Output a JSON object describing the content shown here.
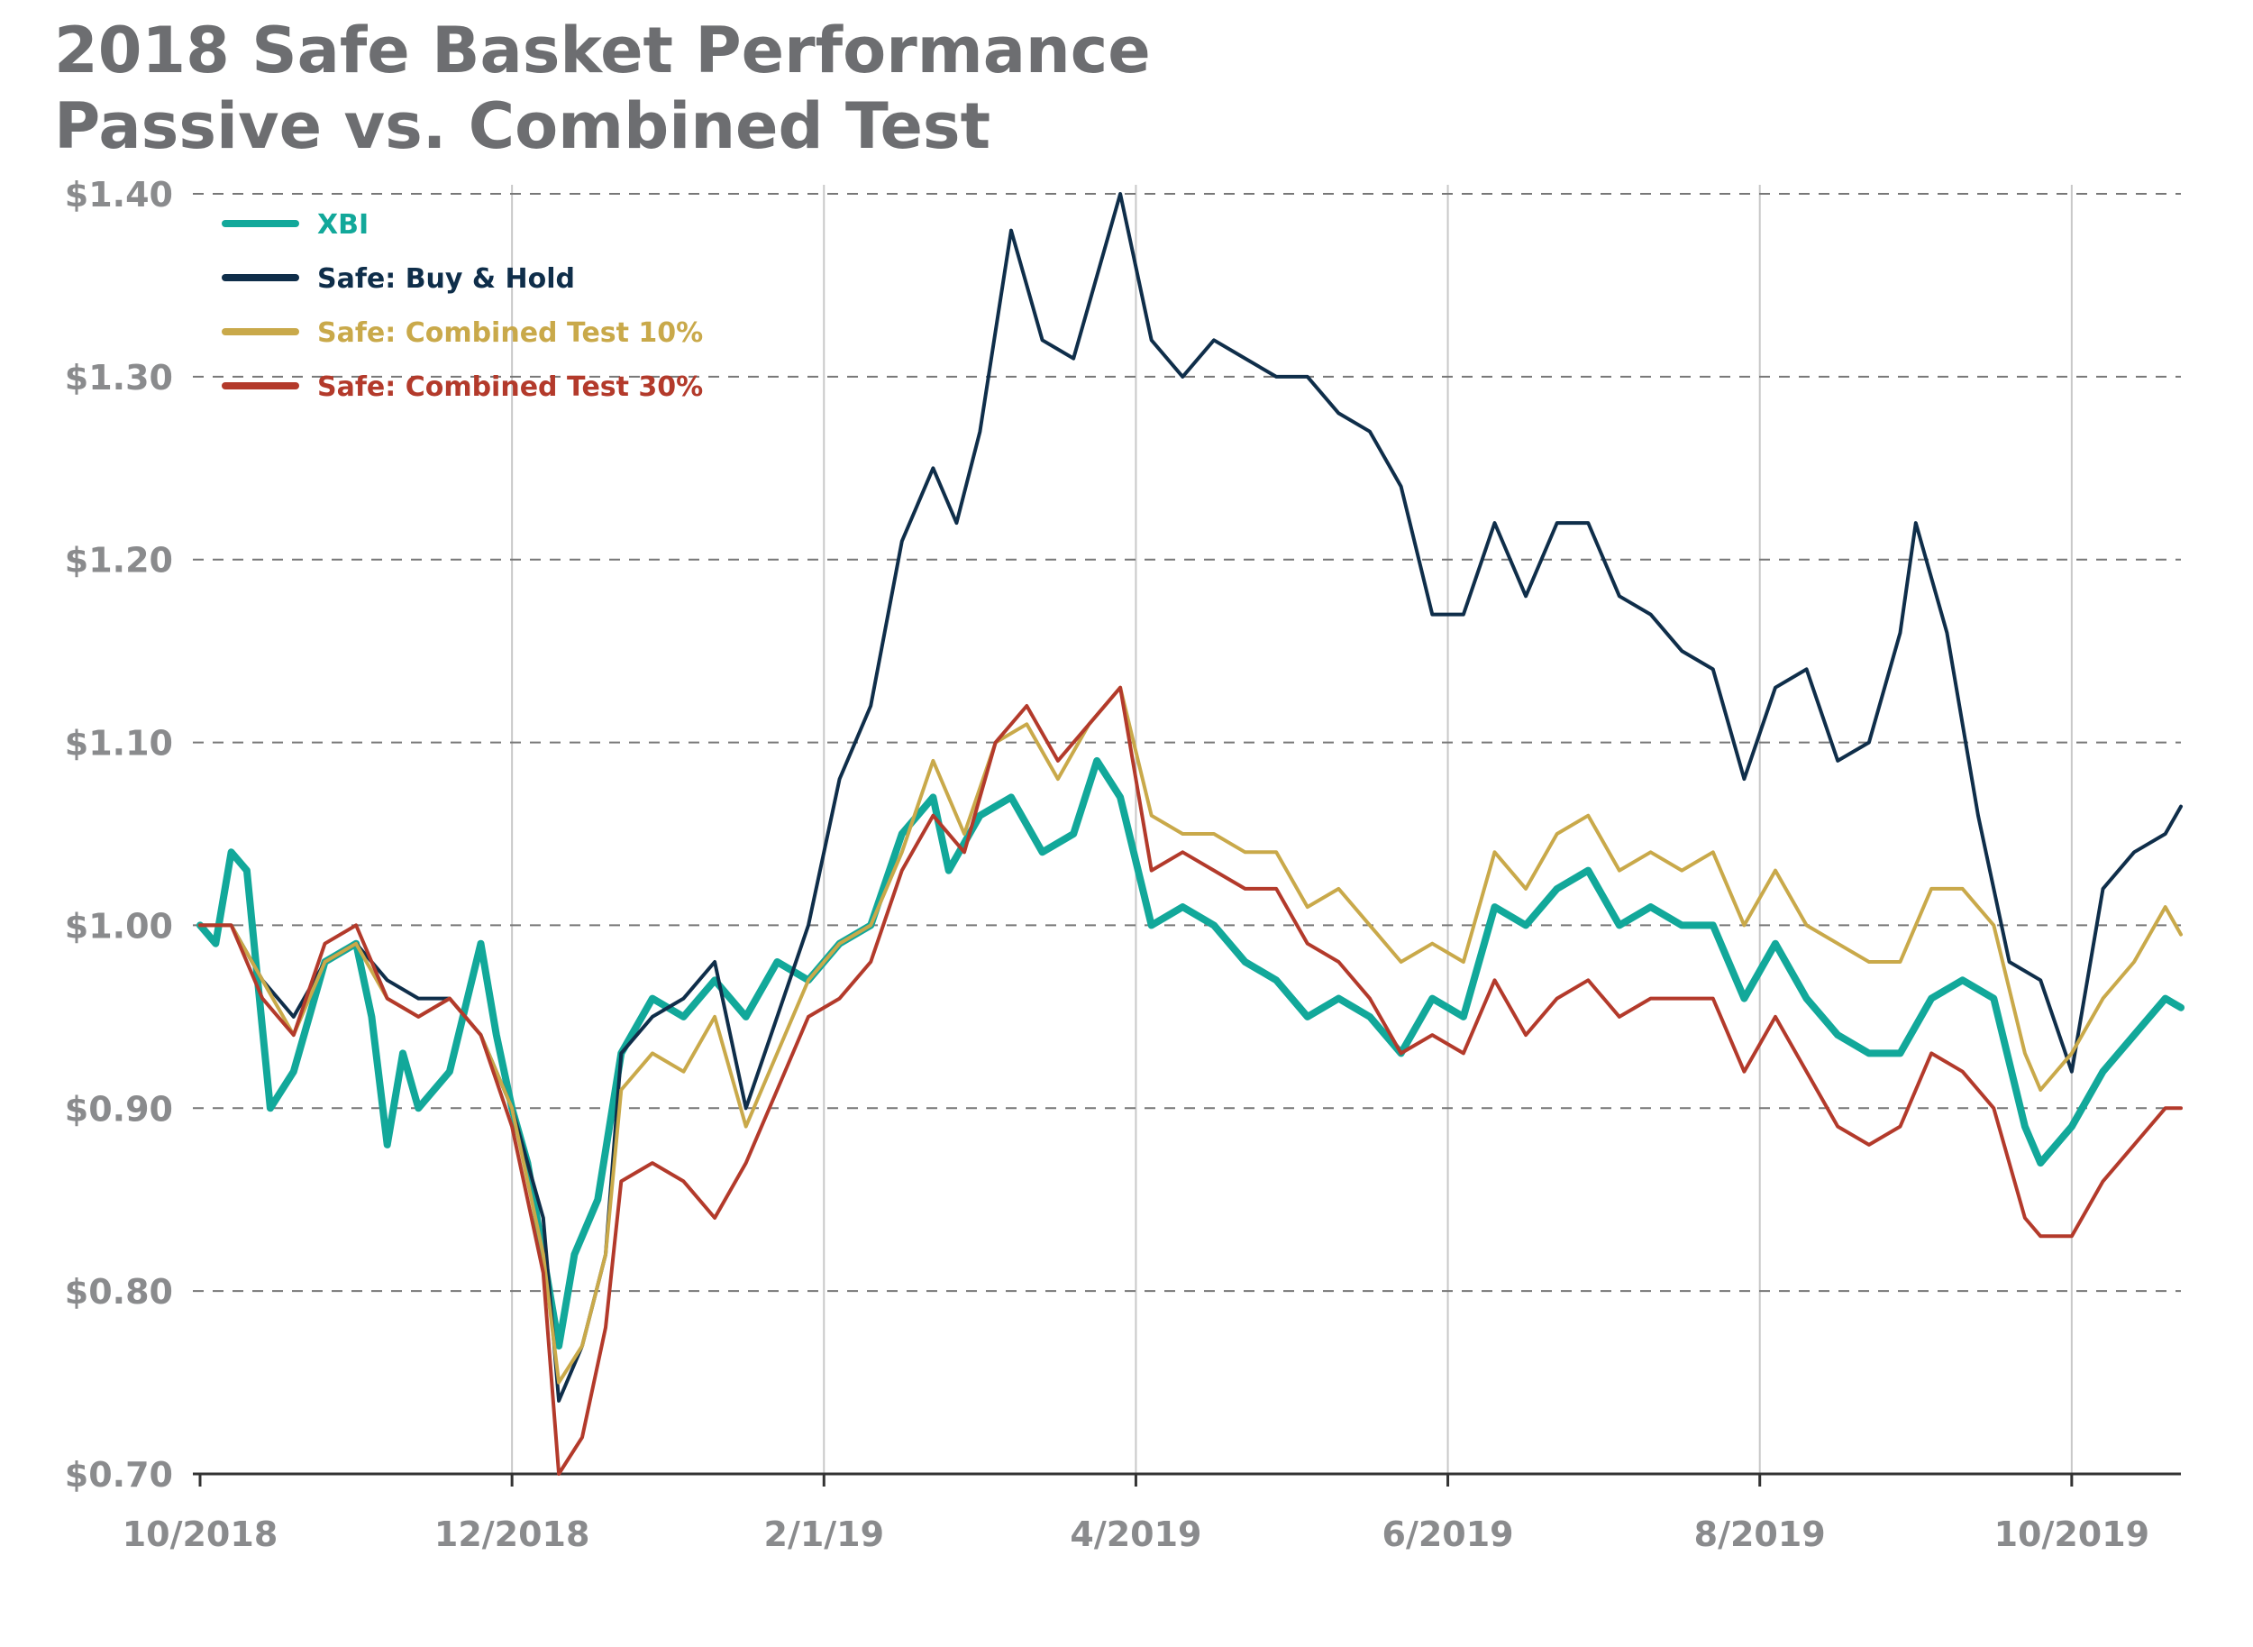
{
  "chart_data": {
    "type": "line",
    "title": "2018 Safe Basket Performance",
    "subtitle": "Passive vs. Combined Test",
    "xlabel": "",
    "ylabel": "",
    "x_range": [
      "10/2018",
      "10/2019+"
    ],
    "ylim": [
      0.7,
      1.4
    ],
    "y_ticks": [
      {
        "value": 1.4,
        "label": "$1.40"
      },
      {
        "value": 1.3,
        "label": "$1.30"
      },
      {
        "value": 1.2,
        "label": "$1.20"
      },
      {
        "value": 1.1,
        "label": "$1.10"
      },
      {
        "value": 1.0,
        "label": "$1.00"
      },
      {
        "value": 0.9,
        "label": "$0.90"
      },
      {
        "value": 0.8,
        "label": "$0.80"
      },
      {
        "value": 0.7,
        "label": "$0.70"
      }
    ],
    "x_ticks": [
      {
        "pos": 0,
        "label": "10/2018"
      },
      {
        "pos": 2,
        "label": "12/2018"
      },
      {
        "pos": 4,
        "label": "2/1/19"
      },
      {
        "pos": 6,
        "label": "4/2019"
      },
      {
        "pos": 8,
        "label": "6/2019"
      },
      {
        "pos": 10,
        "label": "8/2019"
      },
      {
        "pos": 12,
        "label": "10/2019"
      }
    ],
    "x_max": 12.7,
    "grid": {
      "horizontal": "dashed",
      "vertical": "solid"
    },
    "legend_position": "top-left",
    "series": [
      {
        "name": "XBI",
        "color": "#12a89a",
        "width": 8,
        "points": [
          [
            0,
            1.0
          ],
          [
            0.1,
            0.99
          ],
          [
            0.2,
            1.04
          ],
          [
            0.3,
            1.03
          ],
          [
            0.45,
            0.9
          ],
          [
            0.6,
            0.92
          ],
          [
            0.8,
            0.98
          ],
          [
            1.0,
            0.99
          ],
          [
            1.1,
            0.95
          ],
          [
            1.2,
            0.88
          ],
          [
            1.3,
            0.93
          ],
          [
            1.4,
            0.9
          ],
          [
            1.6,
            0.92
          ],
          [
            1.8,
            0.99
          ],
          [
            1.9,
            0.94
          ],
          [
            2.0,
            0.9
          ],
          [
            2.1,
            0.87
          ],
          [
            2.2,
            0.82
          ],
          [
            2.3,
            0.77
          ],
          [
            2.4,
            0.82
          ],
          [
            2.55,
            0.85
          ],
          [
            2.7,
            0.93
          ],
          [
            2.9,
            0.96
          ],
          [
            3.1,
            0.95
          ],
          [
            3.3,
            0.97
          ],
          [
            3.5,
            0.95
          ],
          [
            3.7,
            0.98
          ],
          [
            3.9,
            0.97
          ],
          [
            4.1,
            0.99
          ],
          [
            4.3,
            1.0
          ],
          [
            4.5,
            1.05
          ],
          [
            4.7,
            1.07
          ],
          [
            4.8,
            1.03
          ],
          [
            5.0,
            1.06
          ],
          [
            5.2,
            1.07
          ],
          [
            5.4,
            1.04
          ],
          [
            5.6,
            1.05
          ],
          [
            5.75,
            1.09
          ],
          [
            5.9,
            1.07
          ],
          [
            6.1,
            1.0
          ],
          [
            6.3,
            1.01
          ],
          [
            6.5,
            1.0
          ],
          [
            6.7,
            0.98
          ],
          [
            6.9,
            0.97
          ],
          [
            7.1,
            0.95
          ],
          [
            7.3,
            0.96
          ],
          [
            7.5,
            0.95
          ],
          [
            7.7,
            0.93
          ],
          [
            7.9,
            0.96
          ],
          [
            8.1,
            0.95
          ],
          [
            8.3,
            1.01
          ],
          [
            8.5,
            1.0
          ],
          [
            8.7,
            1.02
          ],
          [
            8.9,
            1.03
          ],
          [
            9.1,
            1.0
          ],
          [
            9.3,
            1.01
          ],
          [
            9.5,
            1.0
          ],
          [
            9.7,
            1.0
          ],
          [
            9.9,
            0.96
          ],
          [
            10.1,
            0.99
          ],
          [
            10.3,
            0.96
          ],
          [
            10.5,
            0.94
          ],
          [
            10.7,
            0.93
          ],
          [
            10.9,
            0.93
          ],
          [
            11.1,
            0.96
          ],
          [
            11.3,
            0.97
          ],
          [
            11.5,
            0.96
          ],
          [
            11.7,
            0.89
          ],
          [
            11.8,
            0.87
          ],
          [
            12.0,
            0.89
          ],
          [
            12.2,
            0.92
          ],
          [
            12.4,
            0.94
          ],
          [
            12.6,
            0.96
          ],
          [
            12.7,
            0.955
          ]
        ]
      },
      {
        "name": "Safe: Buy & Hold",
        "color": "#0f2e4a",
        "width": 4,
        "points": [
          [
            0,
            1.0
          ],
          [
            0.2,
            1.0
          ],
          [
            0.4,
            0.97
          ],
          [
            0.6,
            0.95
          ],
          [
            0.8,
            0.98
          ],
          [
            1.0,
            0.99
          ],
          [
            1.2,
            0.97
          ],
          [
            1.4,
            0.96
          ],
          [
            1.6,
            0.96
          ],
          [
            1.8,
            0.94
          ],
          [
            2.0,
            0.9
          ],
          [
            2.2,
            0.84
          ],
          [
            2.3,
            0.74
          ],
          [
            2.45,
            0.77
          ],
          [
            2.6,
            0.82
          ],
          [
            2.7,
            0.93
          ],
          [
            2.9,
            0.95
          ],
          [
            3.1,
            0.96
          ],
          [
            3.3,
            0.98
          ],
          [
            3.5,
            0.9
          ],
          [
            3.7,
            0.95
          ],
          [
            3.9,
            1.0
          ],
          [
            4.1,
            1.08
          ],
          [
            4.3,
            1.12
          ],
          [
            4.5,
            1.21
          ],
          [
            4.7,
            1.25
          ],
          [
            4.85,
            1.22
          ],
          [
            5.0,
            1.27
          ],
          [
            5.2,
            1.38
          ],
          [
            5.4,
            1.32
          ],
          [
            5.6,
            1.31
          ],
          [
            5.8,
            1.37
          ],
          [
            5.9,
            1.4
          ],
          [
            6.1,
            1.32
          ],
          [
            6.3,
            1.3
          ],
          [
            6.5,
            1.32
          ],
          [
            6.7,
            1.31
          ],
          [
            6.9,
            1.3
          ],
          [
            7.1,
            1.3
          ],
          [
            7.3,
            1.28
          ],
          [
            7.5,
            1.27
          ],
          [
            7.7,
            1.24
          ],
          [
            7.9,
            1.17
          ],
          [
            8.1,
            1.17
          ],
          [
            8.3,
            1.22
          ],
          [
            8.5,
            1.18
          ],
          [
            8.7,
            1.22
          ],
          [
            8.9,
            1.22
          ],
          [
            9.1,
            1.18
          ],
          [
            9.3,
            1.17
          ],
          [
            9.5,
            1.15
          ],
          [
            9.7,
            1.14
          ],
          [
            9.9,
            1.08
          ],
          [
            10.1,
            1.13
          ],
          [
            10.3,
            1.14
          ],
          [
            10.5,
            1.09
          ],
          [
            10.7,
            1.1
          ],
          [
            10.9,
            1.16
          ],
          [
            11.0,
            1.22
          ],
          [
            11.2,
            1.16
          ],
          [
            11.4,
            1.06
          ],
          [
            11.6,
            0.98
          ],
          [
            11.8,
            0.97
          ],
          [
            12.0,
            0.92
          ],
          [
            12.2,
            1.02
          ],
          [
            12.4,
            1.04
          ],
          [
            12.6,
            1.05
          ],
          [
            12.7,
            1.065
          ]
        ]
      },
      {
        "name": "Safe: Combined Test 10%",
        "color": "#c9a94a",
        "width": 4,
        "points": [
          [
            0,
            1.0
          ],
          [
            0.2,
            1.0
          ],
          [
            0.4,
            0.97
          ],
          [
            0.6,
            0.94
          ],
          [
            0.8,
            0.98
          ],
          [
            1.0,
            0.99
          ],
          [
            1.2,
            0.96
          ],
          [
            1.4,
            0.95
          ],
          [
            1.6,
            0.96
          ],
          [
            1.8,
            0.94
          ],
          [
            2.0,
            0.9
          ],
          [
            2.2,
            0.82
          ],
          [
            2.3,
            0.75
          ],
          [
            2.45,
            0.77
          ],
          [
            2.6,
            0.82
          ],
          [
            2.7,
            0.91
          ],
          [
            2.9,
            0.93
          ],
          [
            3.1,
            0.92
          ],
          [
            3.3,
            0.95
          ],
          [
            3.5,
            0.89
          ],
          [
            3.7,
            0.93
          ],
          [
            3.9,
            0.97
          ],
          [
            4.1,
            0.99
          ],
          [
            4.3,
            1.0
          ],
          [
            4.5,
            1.04
          ],
          [
            4.7,
            1.09
          ],
          [
            4.9,
            1.05
          ],
          [
            5.1,
            1.1
          ],
          [
            5.3,
            1.11
          ],
          [
            5.5,
            1.08
          ],
          [
            5.7,
            1.11
          ],
          [
            5.9,
            1.13
          ],
          [
            6.1,
            1.06
          ],
          [
            6.3,
            1.05
          ],
          [
            6.5,
            1.05
          ],
          [
            6.7,
            1.04
          ],
          [
            6.9,
            1.04
          ],
          [
            7.1,
            1.01
          ],
          [
            7.3,
            1.02
          ],
          [
            7.5,
            1.0
          ],
          [
            7.7,
            0.98
          ],
          [
            7.9,
            0.99
          ],
          [
            8.1,
            0.98
          ],
          [
            8.3,
            1.04
          ],
          [
            8.5,
            1.02
          ],
          [
            8.7,
            1.05
          ],
          [
            8.9,
            1.06
          ],
          [
            9.1,
            1.03
          ],
          [
            9.3,
            1.04
          ],
          [
            9.5,
            1.03
          ],
          [
            9.7,
            1.04
          ],
          [
            9.9,
            1.0
          ],
          [
            10.1,
            1.03
          ],
          [
            10.3,
            1.0
          ],
          [
            10.5,
            0.99
          ],
          [
            10.7,
            0.98
          ],
          [
            10.9,
            0.98
          ],
          [
            11.1,
            1.02
          ],
          [
            11.3,
            1.02
          ],
          [
            11.5,
            1.0
          ],
          [
            11.7,
            0.93
          ],
          [
            11.8,
            0.91
          ],
          [
            12.0,
            0.93
          ],
          [
            12.2,
            0.96
          ],
          [
            12.4,
            0.98
          ],
          [
            12.6,
            1.01
          ],
          [
            12.7,
            0.995
          ]
        ]
      },
      {
        "name": "Safe: Combined Test 30%",
        "color": "#b33a2b",
        "width": 4,
        "points": [
          [
            0,
            1.0
          ],
          [
            0.2,
            1.0
          ],
          [
            0.4,
            0.96
          ],
          [
            0.6,
            0.94
          ],
          [
            0.8,
            0.99
          ],
          [
            1.0,
            1.0
          ],
          [
            1.2,
            0.96
          ],
          [
            1.4,
            0.95
          ],
          [
            1.6,
            0.96
          ],
          [
            1.8,
            0.94
          ],
          [
            2.0,
            0.89
          ],
          [
            2.2,
            0.81
          ],
          [
            2.3,
            0.7
          ],
          [
            2.45,
            0.72
          ],
          [
            2.6,
            0.78
          ],
          [
            2.7,
            0.86
          ],
          [
            2.9,
            0.87
          ],
          [
            3.1,
            0.86
          ],
          [
            3.3,
            0.84
          ],
          [
            3.5,
            0.87
          ],
          [
            3.7,
            0.91
          ],
          [
            3.9,
            0.95
          ],
          [
            4.1,
            0.96
          ],
          [
            4.3,
            0.98
          ],
          [
            4.5,
            1.03
          ],
          [
            4.7,
            1.06
          ],
          [
            4.9,
            1.04
          ],
          [
            5.1,
            1.1
          ],
          [
            5.3,
            1.12
          ],
          [
            5.5,
            1.09
          ],
          [
            5.7,
            1.11
          ],
          [
            5.9,
            1.13
          ],
          [
            6.1,
            1.03
          ],
          [
            6.3,
            1.04
          ],
          [
            6.5,
            1.03
          ],
          [
            6.7,
            1.02
          ],
          [
            6.9,
            1.02
          ],
          [
            7.1,
            0.99
          ],
          [
            7.3,
            0.98
          ],
          [
            7.5,
            0.96
          ],
          [
            7.7,
            0.93
          ],
          [
            7.9,
            0.94
          ],
          [
            8.1,
            0.93
          ],
          [
            8.3,
            0.97
          ],
          [
            8.5,
            0.94
          ],
          [
            8.7,
            0.96
          ],
          [
            8.9,
            0.97
          ],
          [
            9.1,
            0.95
          ],
          [
            9.3,
            0.96
          ],
          [
            9.5,
            0.96
          ],
          [
            9.7,
            0.96
          ],
          [
            9.9,
            0.92
          ],
          [
            10.1,
            0.95
          ],
          [
            10.3,
            0.92
          ],
          [
            10.5,
            0.89
          ],
          [
            10.7,
            0.88
          ],
          [
            10.9,
            0.89
          ],
          [
            11.1,
            0.93
          ],
          [
            11.3,
            0.92
          ],
          [
            11.5,
            0.9
          ],
          [
            11.7,
            0.84
          ],
          [
            11.8,
            0.83
          ],
          [
            12.0,
            0.83
          ],
          [
            12.2,
            0.86
          ],
          [
            12.4,
            0.88
          ],
          [
            12.6,
            0.9
          ],
          [
            12.7,
            0.9
          ]
        ]
      }
    ]
  }
}
